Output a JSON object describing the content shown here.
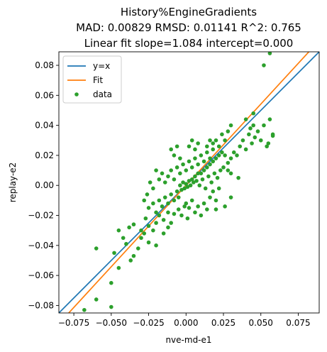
{
  "chart_data": {
    "type": "scatter",
    "title_lines": [
      "History%EngineGradients",
      "MAD: 0.00829 RMSD: 0.01141 R^2: 0.765",
      "Linear fit slope=1.084 intercept=0.000"
    ],
    "xlabel": "nve-md-e1",
    "ylabel": "replay-e2",
    "xlim": [
      -0.085,
      0.089
    ],
    "ylim": [
      -0.085,
      0.089
    ],
    "xticks": [
      -0.075,
      -0.05,
      -0.025,
      0.0,
      0.025,
      0.05,
      0.075
    ],
    "xtick_labels": [
      "−0.075",
      "−0.050",
      "−0.025",
      "0.000",
      "0.025",
      "0.050",
      "0.075"
    ],
    "yticks": [
      -0.08,
      -0.06,
      -0.04,
      -0.02,
      0.0,
      0.02,
      0.04,
      0.06,
      0.08
    ],
    "ytick_labels": [
      "−0.08",
      "−0.06",
      "−0.04",
      "−0.02",
      "0.00",
      "0.02",
      "0.04",
      "0.06",
      "0.08"
    ],
    "legend_position": "upper-left",
    "colors": {
      "identity": "#1f77b4",
      "fit": "#ff7f0e",
      "data": "#2ca02c"
    },
    "series": [
      {
        "name": "y=x",
        "kind": "line",
        "slope": 1.0,
        "intercept": 0.0
      },
      {
        "name": "Fit",
        "kind": "line",
        "slope": 1.084,
        "intercept": 0.0
      },
      {
        "name": "data",
        "kind": "scatter",
        "points": [
          [
            -0.068,
            -0.083
          ],
          [
            -0.06,
            -0.076
          ],
          [
            -0.05,
            -0.081
          ],
          [
            -0.05,
            -0.065
          ],
          [
            -0.045,
            -0.055
          ],
          [
            -0.037,
            -0.05
          ],
          [
            -0.035,
            -0.047
          ],
          [
            -0.04,
            -0.039
          ],
          [
            -0.032,
            -0.042
          ],
          [
            -0.03,
            -0.035
          ],
          [
            -0.028,
            -0.032
          ],
          [
            -0.025,
            -0.038
          ],
          [
            -0.038,
            -0.028
          ],
          [
            -0.035,
            -0.026
          ],
          [
            -0.03,
            -0.03
          ],
          [
            -0.027,
            -0.022
          ],
          [
            -0.025,
            -0.027
          ],
          [
            -0.022,
            -0.03
          ],
          [
            -0.02,
            -0.025
          ],
          [
            -0.018,
            -0.02
          ],
          [
            -0.015,
            -0.023
          ],
          [
            -0.012,
            -0.028
          ],
          [
            -0.01,
            -0.025
          ],
          [
            -0.008,
            -0.019
          ],
          [
            -0.025,
            -0.015
          ],
          [
            -0.022,
            -0.012
          ],
          [
            -0.02,
            -0.018
          ],
          [
            -0.018,
            -0.01
          ],
          [
            -0.016,
            -0.014
          ],
          [
            -0.014,
            -0.008
          ],
          [
            -0.012,
            -0.012
          ],
          [
            -0.01,
            -0.006
          ],
          [
            -0.008,
            -0.01
          ],
          [
            -0.006,
            -0.004
          ],
          [
            -0.005,
            -0.008
          ],
          [
            -0.004,
            0.0
          ],
          [
            -0.003,
            -0.003
          ],
          [
            -0.002,
            0.002
          ],
          [
            -0.001,
            -0.002
          ],
          [
            0.0,
            0.001
          ],
          [
            0.001,
            -0.001
          ],
          [
            0.002,
            0.003
          ],
          [
            0.003,
            0.0
          ],
          [
            0.004,
            0.004
          ],
          [
            0.005,
            0.002
          ],
          [
            0.006,
            0.006
          ],
          [
            0.007,
            0.003
          ],
          [
            0.008,
            0.008
          ],
          [
            -0.012,
            0.006
          ],
          [
            -0.01,
            0.01
          ],
          [
            -0.008,
            0.004
          ],
          [
            -0.006,
            0.012
          ],
          [
            -0.004,
            0.008
          ],
          [
            -0.002,
            0.014
          ],
          [
            0.0,
            0.01
          ],
          [
            0.002,
            0.016
          ],
          [
            0.004,
            0.012
          ],
          [
            0.006,
            0.018
          ],
          [
            0.008,
            0.014
          ],
          [
            0.01,
            0.02
          ],
          [
            0.012,
            0.016
          ],
          [
            0.014,
            0.022
          ],
          [
            0.016,
            0.018
          ],
          [
            0.018,
            0.024
          ],
          [
            0.01,
            0.008
          ],
          [
            0.012,
            0.01
          ],
          [
            0.014,
            0.012
          ],
          [
            0.016,
            0.014
          ],
          [
            0.018,
            0.016
          ],
          [
            0.02,
            0.018
          ],
          [
            0.022,
            0.02
          ],
          [
            0.024,
            0.022
          ],
          [
            0.009,
            0.0
          ],
          [
            0.011,
            0.004
          ],
          [
            0.013,
            -0.002
          ],
          [
            0.015,
            0.006
          ],
          [
            0.017,
            0.002
          ],
          [
            0.019,
            0.008
          ],
          [
            0.021,
            0.005
          ],
          [
            0.023,
            0.01
          ],
          [
            0.0,
            -0.012
          ],
          [
            0.002,
            -0.015
          ],
          [
            0.004,
            -0.01
          ],
          [
            0.006,
            -0.018
          ],
          [
            0.008,
            -0.014
          ],
          [
            0.01,
            -0.02
          ],
          [
            0.012,
            -0.012
          ],
          [
            0.014,
            -0.016
          ],
          [
            -0.005,
            -0.016
          ],
          [
            -0.003,
            -0.02
          ],
          [
            -0.001,
            -0.014
          ],
          [
            0.001,
            -0.022
          ],
          [
            0.016,
            -0.008
          ],
          [
            0.018,
            -0.004
          ],
          [
            0.02,
            -0.01
          ],
          [
            0.022,
            -0.002
          ],
          [
            0.025,
            0.012
          ],
          [
            0.028,
            0.015
          ],
          [
            0.03,
            0.018
          ],
          [
            0.032,
            0.022
          ],
          [
            0.034,
            0.02
          ],
          [
            0.036,
            0.026
          ],
          [
            0.038,
            0.03
          ],
          [
            0.04,
            0.024
          ],
          [
            0.042,
            0.034
          ],
          [
            0.044,
            0.028
          ],
          [
            0.046,
            0.032
          ],
          [
            0.048,
            0.036
          ],
          [
            0.05,
            0.03
          ],
          [
            0.052,
            0.04
          ],
          [
            0.054,
            0.026
          ],
          [
            0.056,
            0.044
          ],
          [
            0.055,
            0.028
          ],
          [
            0.058,
            0.034
          ],
          [
            0.043,
            0.038
          ],
          [
            0.045,
            0.04
          ],
          [
            0.03,
            0.04
          ],
          [
            0.028,
            0.036
          ],
          [
            0.026,
            0.03
          ],
          [
            0.024,
            0.034
          ],
          [
            0.02,
            0.03
          ],
          [
            0.018,
            0.028
          ],
          [
            0.016,
            0.03
          ],
          [
            0.014,
            0.026
          ],
          [
            0.022,
            0.026
          ],
          [
            0.026,
            0.02
          ],
          [
            0.028,
            0.01
          ],
          [
            0.03,
            0.008
          ],
          [
            -0.01,
            0.024
          ],
          [
            -0.008,
            0.02
          ],
          [
            -0.006,
            0.026
          ],
          [
            -0.004,
            0.018
          ],
          [
            -0.02,
            0.01
          ],
          [
            -0.018,
            0.004
          ],
          [
            -0.016,
            0.008
          ],
          [
            -0.014,
            0.002
          ],
          [
            -0.022,
            -0.002
          ],
          [
            -0.024,
            0.002
          ],
          [
            -0.026,
            -0.006
          ],
          [
            -0.028,
            -0.01
          ],
          [
            0.002,
            0.026
          ],
          [
            0.004,
            0.03
          ],
          [
            0.006,
            0.024
          ],
          [
            0.008,
            0.028
          ],
          [
            0.03,
            -0.008
          ],
          [
            0.035,
            0.005
          ],
          [
            0.026,
            -0.014
          ],
          [
            0.02,
            -0.016
          ],
          [
            0.058,
            0.033
          ],
          [
            0.052,
            0.08
          ],
          [
            0.056,
            0.088
          ],
          [
            0.045,
            0.048
          ],
          [
            0.04,
            0.044
          ],
          [
            -0.06,
            -0.042
          ],
          [
            -0.045,
            -0.03
          ],
          [
            -0.048,
            -0.045
          ],
          [
            -0.042,
            -0.035
          ],
          [
            -0.02,
            -0.04
          ],
          [
            -0.015,
            -0.032
          ],
          [
            -0.012,
            -0.018
          ]
        ]
      }
    ]
  }
}
